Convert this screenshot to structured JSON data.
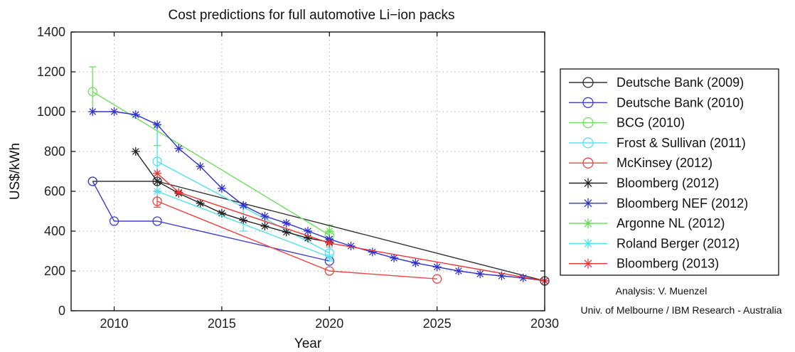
{
  "chart_data": {
    "type": "line",
    "title": "Cost predictions for full automotive Li−ion packs",
    "xlabel": "Year",
    "ylabel": "US$/kWh",
    "xlim": [
      2008,
      2030
    ],
    "ylim": [
      0,
      1400
    ],
    "x_ticks": [
      "2010",
      "2015",
      "2020",
      "2025",
      "2030"
    ],
    "y_ticks": [
      "0",
      "200",
      "400",
      "600",
      "800",
      "1000",
      "1200",
      "1400"
    ],
    "grid": true,
    "legend_position": "right",
    "series": [
      {
        "name": "Deutsche Bank (2009)",
        "color": "#333333",
        "marker": "circle",
        "x": [
          2009,
          2012,
          2030
        ],
        "y": [
          650,
          650,
          150
        ]
      },
      {
        "name": "Deutsche Bank (2010)",
        "color": "#4040d0",
        "marker": "circle",
        "x": [
          2009,
          2010,
          2012,
          2020
        ],
        "y": [
          650,
          450,
          450,
          250
        ]
      },
      {
        "name": "BCG (2010)",
        "color": "#70dd60",
        "marker": "circle",
        "x": [
          2009,
          2020
        ],
        "y": [
          1100,
          380
        ]
      },
      {
        "name": "Frost & Sullivan (2011)",
        "color": "#50e0f0",
        "marker": "circle",
        "x": [
          2012,
          2020
        ],
        "y": [
          750,
          290
        ]
      },
      {
        "name": "McKinsey (2012)",
        "color": "#ee4444",
        "marker": "circle",
        "x": [
          2012,
          2020,
          2025
        ],
        "y": [
          550,
          200,
          160
        ]
      },
      {
        "name": "Bloomberg (2012)",
        "color": "#222222",
        "marker": "star",
        "x": [
          2011,
          2012,
          2013,
          2014,
          2015,
          2016,
          2017,
          2018,
          2019,
          2020
        ],
        "y": [
          800,
          650,
          590,
          540,
          490,
          455,
          425,
          395,
          365,
          345
        ]
      },
      {
        "name": "Bloomberg NEF (2012)",
        "color": "#3030d0",
        "marker": "star",
        "x": [
          2009,
          2010,
          2011,
          2012,
          2013,
          2014,
          2015,
          2016,
          2017,
          2018,
          2019,
          2020,
          2021,
          2022,
          2023,
          2024,
          2025,
          2026,
          2027,
          2028,
          2029,
          2030
        ],
        "y": [
          1000,
          1000,
          985,
          935,
          815,
          725,
          615,
          530,
          475,
          440,
          400,
          360,
          325,
          295,
          265,
          240,
          220,
          200,
          185,
          175,
          165,
          150
        ]
      },
      {
        "name": "Argonne NL (2012)",
        "color": "#60dd50",
        "marker": "star",
        "x": [
          2020
        ],
        "y": [
          400
        ]
      },
      {
        "name": "Roland Berger (2012)",
        "color": "#50e0f0",
        "marker": "star",
        "x": [
          2012,
          2020
        ],
        "y": [
          600,
          270
        ]
      },
      {
        "name": "Bloomberg (2013)",
        "color": "#ee3333",
        "marker": "star",
        "x": [
          2012,
          2013,
          2020,
          2030
        ],
        "y": [
          690,
          595,
          340,
          150
        ]
      }
    ],
    "error_bars": [
      {
        "series": "BCG (2010)",
        "x": 2009,
        "low": 1000,
        "high": 1225
      },
      {
        "series": "BCG (2010)",
        "x": 2012,
        "low": 830,
        "high": 930
      },
      {
        "series": "BCG (2010)",
        "x": 2020,
        "low": 340,
        "high": 430
      },
      {
        "series": "Frost & Sullivan (2011)",
        "x": 2012,
        "low": 600,
        "high": 920
      },
      {
        "series": "Roland Berger (2012)",
        "x": 2016,
        "low": 400,
        "high": 520
      },
      {
        "series": "Roland Berger (2012)",
        "x": 2020,
        "low": 250,
        "high": 320
      },
      {
        "series": "McKinsey (2012)",
        "x": 2012,
        "low": 520,
        "high": 600
      }
    ],
    "annotations": [
      "Analysis: V. Muenzel",
      "Univ. of Melbourne / IBM Research - Australia"
    ]
  }
}
